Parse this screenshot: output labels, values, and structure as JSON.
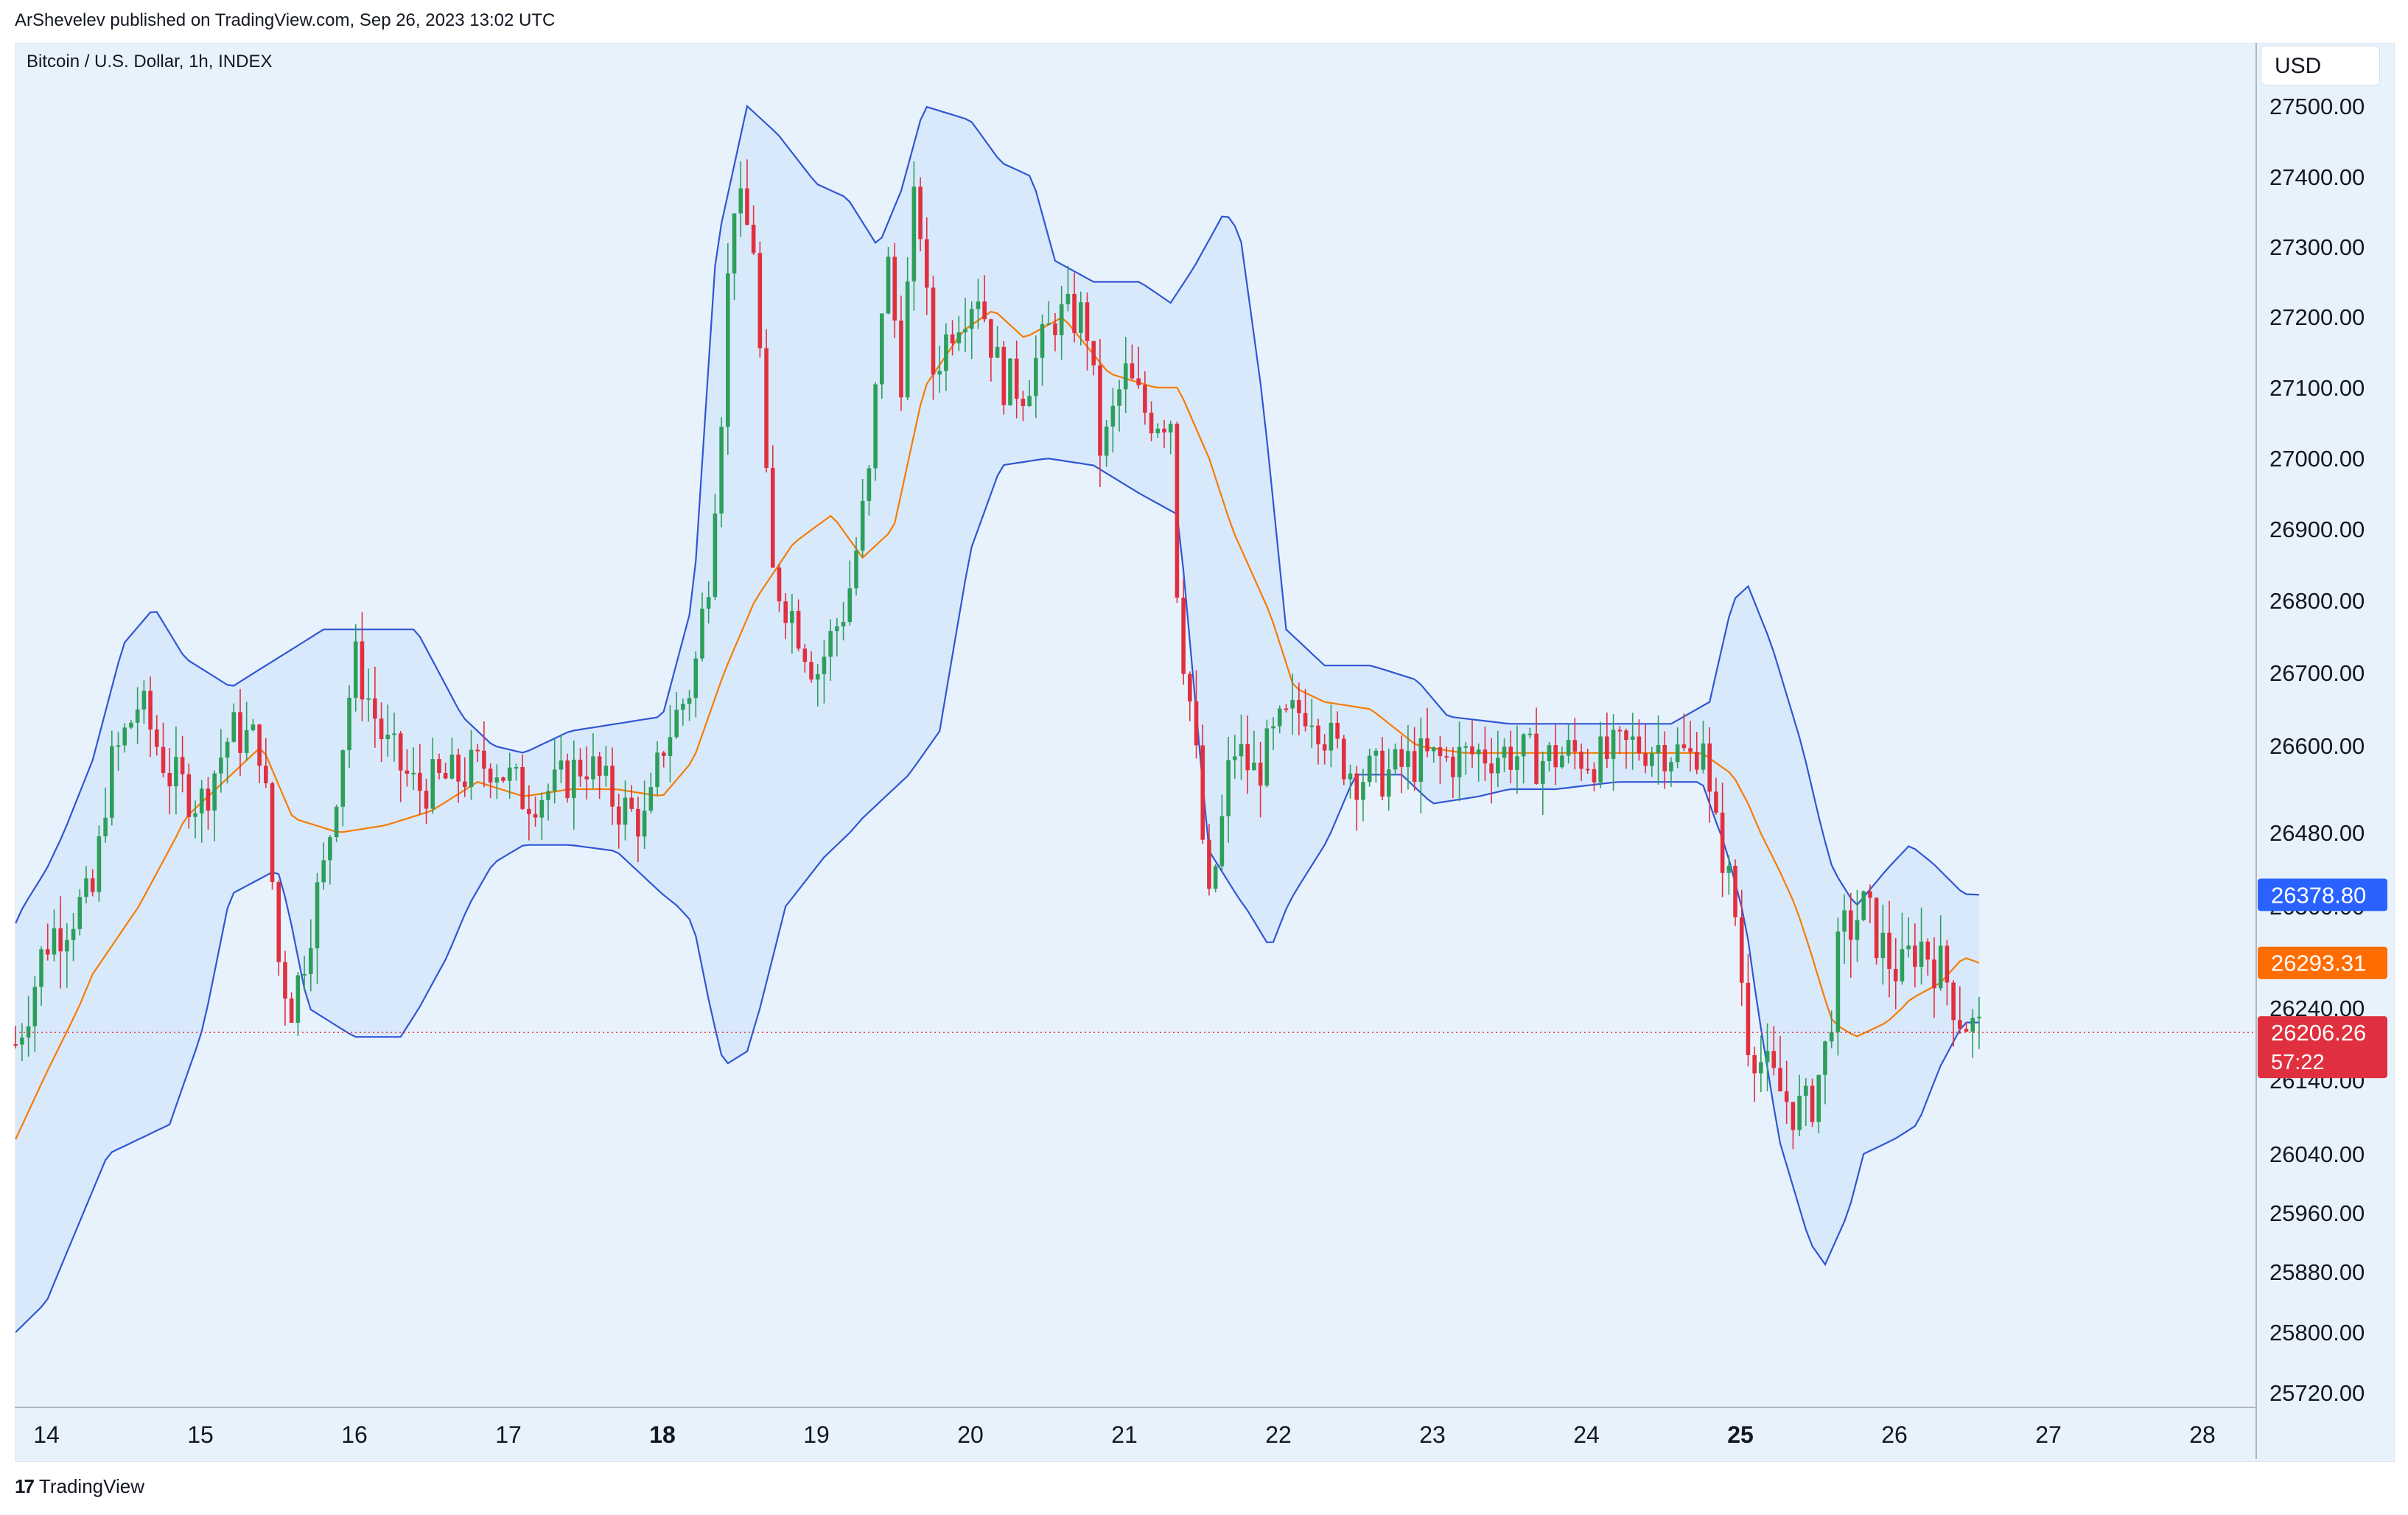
{
  "header": {
    "published": "ArShevelev published on TradingView.com, Sep 26, 2023 13:02 UTC",
    "symbol": "Bitcoin / U.S. Dollar, 1h, INDEX",
    "currency": "USD"
  },
  "footer": {
    "brand": "TradingView"
  },
  "colors": {
    "up": "#26a69a",
    "up_candle": "#2e9e5b",
    "down": "#e0303f",
    "band": "#3056d3",
    "basis": "#f57c00",
    "band_fill": "#d6e8fb",
    "pane": "#e8f2fd",
    "last_price": "#e0303f",
    "upper_label": "#2962ff",
    "basis_label": "#ff6d00"
  },
  "chart_data": {
    "type": "candlestick",
    "title": "Bitcoin / U.S. Dollar, 1h, INDEX",
    "indicator": "Bollinger Bands",
    "x_ticks": [
      {
        "label": "14",
        "day": 14,
        "bold": false
      },
      {
        "label": "15",
        "day": 15,
        "bold": false
      },
      {
        "label": "16",
        "day": 16,
        "bold": false
      },
      {
        "label": "17",
        "day": 17,
        "bold": false
      },
      {
        "label": "18",
        "day": 18,
        "bold": true
      },
      {
        "label": "19",
        "day": 19,
        "bold": false
      },
      {
        "label": "20",
        "day": 20,
        "bold": false
      },
      {
        "label": "21",
        "day": 21,
        "bold": false
      },
      {
        "label": "22",
        "day": 22,
        "bold": false
      },
      {
        "label": "23",
        "day": 23,
        "bold": false
      },
      {
        "label": "24",
        "day": 24,
        "bold": false
      },
      {
        "label": "25",
        "day": 25,
        "bold": true
      },
      {
        "label": "26",
        "day": 26,
        "bold": false
      },
      {
        "label": "27",
        "day": 27,
        "bold": false
      },
      {
        "label": "28",
        "day": 28,
        "bold": false
      }
    ],
    "y_ticks": [
      {
        "value": 27500,
        "label": "27500.00"
      },
      {
        "value": 27400,
        "label": "27400.00"
      },
      {
        "value": 27300,
        "label": "27300.00"
      },
      {
        "value": 27200,
        "label": "27200.00"
      },
      {
        "value": 27100,
        "label": "27100.00"
      },
      {
        "value": 27000,
        "label": "27000.00"
      },
      {
        "value": 26900,
        "label": "26900.00"
      },
      {
        "value": 26800,
        "label": "26800.00"
      },
      {
        "value": 26700,
        "label": "26700.00"
      },
      {
        "value": 26600,
        "label": "26600.00"
      },
      {
        "value": 26480,
        "label": "26480.00"
      },
      {
        "value": 26360,
        "label": "26360.00"
      },
      {
        "value": 26240,
        "label": "26240.00"
      },
      {
        "value": 26140,
        "label": "26140.00"
      },
      {
        "value": 26040,
        "label": "26040.00"
      },
      {
        "value": 25960,
        "label": "25960.00"
      },
      {
        "value": 25880,
        "label": "25880.00"
      },
      {
        "value": 25800,
        "label": "25800.00"
      },
      {
        "value": 25720,
        "label": "25720.00"
      }
    ],
    "price_labels": [
      {
        "name": "upper-band",
        "value": 26378.8,
        "text": "26378.80",
        "sub": ""
      },
      {
        "name": "basis",
        "value": 26293.31,
        "text": "26293.31",
        "sub": ""
      },
      {
        "name": "last-price",
        "value": 26206.26,
        "text": "26206.26",
        "sub": "57:22"
      }
    ],
    "last_price": 26206.26,
    "anchors": {
      "close": [
        [
          13.8,
          26190
        ],
        [
          14.0,
          26320
        ],
        [
          14.3,
          26380
        ],
        [
          14.4,
          26560
        ],
        [
          14.6,
          26660
        ],
        [
          14.8,
          26560
        ],
        [
          15.0,
          26520
        ],
        [
          15.2,
          26620
        ],
        [
          15.4,
          26600
        ],
        [
          15.5,
          26300
        ],
        [
          15.6,
          26240
        ],
        [
          15.8,
          26420
        ],
        [
          16.0,
          26720
        ],
        [
          16.2,
          26600
        ],
        [
          16.4,
          26540
        ],
        [
          16.7,
          26560
        ],
        [
          16.9,
          26580
        ],
        [
          17.1,
          26530
        ],
        [
          17.3,
          26540
        ],
        [
          17.5,
          26580
        ],
        [
          17.7,
          26520
        ],
        [
          17.9,
          26490
        ],
        [
          18.0,
          26600
        ],
        [
          18.2,
          26690
        ],
        [
          18.3,
          26840
        ],
        [
          18.4,
          27120
        ],
        [
          18.45,
          27380
        ],
        [
          18.6,
          27300
        ],
        [
          18.7,
          26840
        ],
        [
          18.85,
          26780
        ],
        [
          19.0,
          26700
        ],
        [
          19.2,
          26800
        ],
        [
          19.35,
          26980
        ],
        [
          19.45,
          27300
        ],
        [
          19.55,
          27120
        ],
        [
          19.65,
          27400
        ],
        [
          19.75,
          27120
        ],
        [
          19.9,
          27200
        ],
        [
          20.05,
          27240
        ],
        [
          20.2,
          27110
        ],
        [
          20.35,
          27100
        ],
        [
          20.55,
          27200
        ],
        [
          20.75,
          27200
        ],
        [
          20.85,
          27000
        ],
        [
          21.0,
          27120
        ],
        [
          21.15,
          27060
        ],
        [
          21.3,
          27060
        ],
        [
          21.35,
          26780
        ],
        [
          21.45,
          26620
        ],
        [
          21.55,
          26360
        ],
        [
          21.7,
          26600
        ],
        [
          21.85,
          26560
        ],
        [
          22.0,
          26620
        ],
        [
          22.2,
          26660
        ],
        [
          22.35,
          26600
        ],
        [
          22.5,
          26560
        ],
        [
          22.7,
          26560
        ],
        [
          22.9,
          26580
        ],
        [
          23.1,
          26580
        ],
        [
          23.3,
          26590
        ],
        [
          23.5,
          26590
        ],
        [
          23.7,
          26580
        ],
        [
          23.9,
          26590
        ],
        [
          24.1,
          26580
        ],
        [
          24.3,
          26600
        ],
        [
          24.5,
          26600
        ],
        [
          24.7,
          26580
        ],
        [
          24.75,
          26640
        ],
        [
          24.8,
          26520
        ],
        [
          24.95,
          26380
        ],
        [
          25.05,
          26200
        ],
        [
          25.2,
          26140
        ],
        [
          25.35,
          26100
        ],
        [
          25.45,
          26100
        ],
        [
          25.55,
          26180
        ],
        [
          25.65,
          26320
        ],
        [
          25.8,
          26360
        ],
        [
          25.95,
          26300
        ],
        [
          26.05,
          26280
        ],
        [
          26.15,
          26320
        ],
        [
          26.25,
          26300
        ],
        [
          26.35,
          26270
        ],
        [
          26.42,
          26230
        ],
        [
          26.55,
          26206.26
        ]
      ],
      "upper": [
        [
          13.8,
          26340
        ],
        [
          14.0,
          26420
        ],
        [
          14.3,
          26580
        ],
        [
          14.5,
          26740
        ],
        [
          14.7,
          26790
        ],
        [
          14.9,
          26720
        ],
        [
          15.2,
          26680
        ],
        [
          15.5,
          26720
        ],
        [
          15.8,
          26760
        ],
        [
          16.1,
          26760
        ],
        [
          16.4,
          26760
        ],
        [
          16.7,
          26640
        ],
        [
          16.9,
          26600
        ],
        [
          17.1,
          26590
        ],
        [
          17.4,
          26620
        ],
        [
          17.7,
          26630
        ],
        [
          18.0,
          26640
        ],
        [
          18.2,
          26800
        ],
        [
          18.35,
          27300
        ],
        [
          18.55,
          27500
        ],
        [
          18.75,
          27460
        ],
        [
          19.0,
          27390
        ],
        [
          19.2,
          27370
        ],
        [
          19.4,
          27300
        ],
        [
          19.55,
          27380
        ],
        [
          19.7,
          27500
        ],
        [
          20.0,
          27480
        ],
        [
          20.2,
          27420
        ],
        [
          20.4,
          27400
        ],
        [
          20.55,
          27280
        ],
        [
          20.8,
          27250
        ],
        [
          21.1,
          27250
        ],
        [
          21.3,
          27220
        ],
        [
          21.45,
          27270
        ],
        [
          21.65,
          27350
        ],
        [
          21.75,
          27320
        ],
        [
          21.9,
          27080
        ],
        [
          22.05,
          26760
        ],
        [
          22.3,
          26710
        ],
        [
          22.6,
          26710
        ],
        [
          22.9,
          26690
        ],
        [
          23.1,
          26640
        ],
        [
          23.5,
          26630
        ],
        [
          23.9,
          26630
        ],
        [
          24.2,
          26630
        ],
        [
          24.55,
          26630
        ],
        [
          24.8,
          26660
        ],
        [
          24.95,
          26800
        ],
        [
          25.05,
          26820
        ],
        [
          25.2,
          26740
        ],
        [
          25.4,
          26600
        ],
        [
          25.6,
          26420
        ],
        [
          25.75,
          26360
        ],
        [
          25.95,
          26420
        ],
        [
          26.1,
          26460
        ],
        [
          26.25,
          26430
        ],
        [
          26.45,
          26380
        ],
        [
          26.55,
          26378.8
        ]
      ],
      "lower": [
        [
          13.8,
          25800
        ],
        [
          14.0,
          25840
        ],
        [
          14.2,
          25940
        ],
        [
          14.4,
          26040
        ],
        [
          14.6,
          26060
        ],
        [
          14.8,
          26080
        ],
        [
          15.0,
          26200
        ],
        [
          15.2,
          26380
        ],
        [
          15.5,
          26420
        ],
        [
          15.7,
          26240
        ],
        [
          16.0,
          26200
        ],
        [
          16.3,
          26200
        ],
        [
          16.6,
          26300
        ],
        [
          16.9,
          26430
        ],
        [
          17.1,
          26460
        ],
        [
          17.4,
          26460
        ],
        [
          17.7,
          26450
        ],
        [
          18.0,
          26380
        ],
        [
          18.2,
          26340
        ],
        [
          18.4,
          26160
        ],
        [
          18.55,
          26180
        ],
        [
          18.8,
          26360
        ],
        [
          19.05,
          26440
        ],
        [
          19.3,
          26500
        ],
        [
          19.6,
          26560
        ],
        [
          19.8,
          26620
        ],
        [
          20.0,
          26870
        ],
        [
          20.2,
          26990
        ],
        [
          20.5,
          27000
        ],
        [
          20.8,
          26990
        ],
        [
          21.1,
          26950
        ],
        [
          21.35,
          26920
        ],
        [
          21.55,
          26450
        ],
        [
          21.75,
          26370
        ],
        [
          21.95,
          26310
        ],
        [
          22.1,
          26380
        ],
        [
          22.3,
          26460
        ],
        [
          22.5,
          26560
        ],
        [
          22.8,
          26560
        ],
        [
          23.0,
          26520
        ],
        [
          23.3,
          26530
        ],
        [
          23.5,
          26540
        ],
        [
          23.8,
          26540
        ],
        [
          24.2,
          26550
        ],
        [
          24.55,
          26550
        ],
        [
          24.75,
          26550
        ],
        [
          24.9,
          26460
        ],
        [
          25.05,
          26320
        ],
        [
          25.25,
          26060
        ],
        [
          25.45,
          25920
        ],
        [
          25.55,
          25890
        ],
        [
          25.7,
          25960
        ],
        [
          25.8,
          26040
        ],
        [
          26.0,
          26060
        ],
        [
          26.15,
          26080
        ],
        [
          26.3,
          26160
        ],
        [
          26.45,
          26220
        ],
        [
          26.55,
          26220
        ]
      ],
      "basis": [
        [
          13.8,
          26060
        ],
        [
          14.0,
          26150
        ],
        [
          14.3,
          26280
        ],
        [
          14.6,
          26360
        ],
        [
          14.9,
          26500
        ],
        [
          15.2,
          26560
        ],
        [
          15.4,
          26600
        ],
        [
          15.6,
          26500
        ],
        [
          15.9,
          26480
        ],
        [
          16.2,
          26490
        ],
        [
          16.5,
          26510
        ],
        [
          16.8,
          26550
        ],
        [
          17.1,
          26530
        ],
        [
          17.4,
          26540
        ],
        [
          17.7,
          26540
        ],
        [
          18.0,
          26530
        ],
        [
          18.2,
          26580
        ],
        [
          18.4,
          26700
        ],
        [
          18.6,
          26800
        ],
        [
          18.85,
          26880
        ],
        [
          19.1,
          26920
        ],
        [
          19.3,
          26860
        ],
        [
          19.5,
          26900
        ],
        [
          19.7,
          27100
        ],
        [
          19.95,
          27180
        ],
        [
          20.15,
          27210
        ],
        [
          20.35,
          27170
        ],
        [
          20.6,
          27200
        ],
        [
          20.9,
          27120
        ],
        [
          21.2,
          27100
        ],
        [
          21.35,
          27100
        ],
        [
          21.55,
          27000
        ],
        [
          21.7,
          26900
        ],
        [
          21.95,
          26780
        ],
        [
          22.1,
          26680
        ],
        [
          22.3,
          26660
        ],
        [
          22.6,
          26650
        ],
        [
          22.9,
          26600
        ],
        [
          23.2,
          26590
        ],
        [
          23.6,
          26590
        ],
        [
          24.0,
          26590
        ],
        [
          24.4,
          26590
        ],
        [
          24.75,
          26590
        ],
        [
          24.95,
          26560
        ],
        [
          25.05,
          26520
        ],
        [
          25.25,
          26420
        ],
        [
          25.45,
          26310
        ],
        [
          25.6,
          26220
        ],
        [
          25.75,
          26200
        ],
        [
          25.95,
          26220
        ],
        [
          26.1,
          26250
        ],
        [
          26.3,
          26270
        ],
        [
          26.45,
          26300
        ],
        [
          26.55,
          26293.31
        ]
      ]
    }
  }
}
